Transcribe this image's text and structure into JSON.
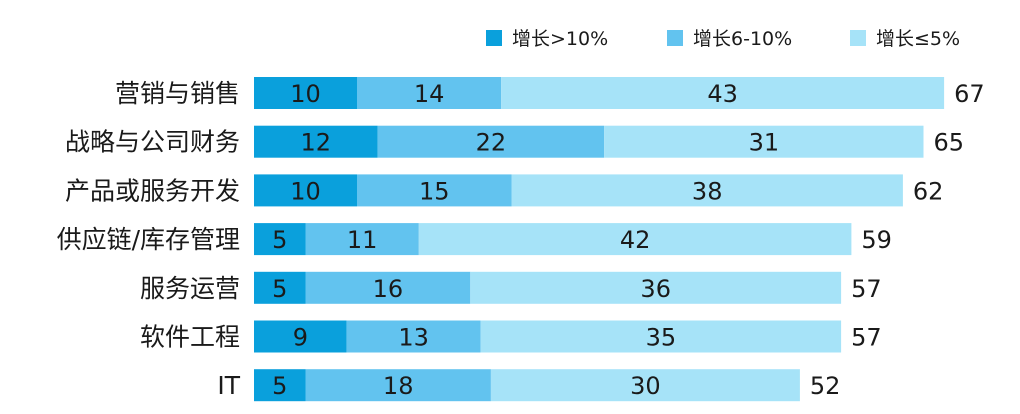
{
  "chart_data": {
    "type": "bar",
    "orientation": "horizontal",
    "stacked": true,
    "categories": [
      "营销与销售",
      "战略与公司财务",
      "产品或服务开发",
      "供应链/库存管理",
      "服务运营",
      "软件工程",
      "IT"
    ],
    "series": [
      {
        "name": "增长>10%",
        "color": "#0aa0dc",
        "values": [
          10,
          12,
          10,
          5,
          5,
          9,
          5
        ]
      },
      {
        "name": "增长6-10%",
        "color": "#62c3ef",
        "values": [
          14,
          22,
          15,
          11,
          16,
          13,
          18
        ]
      },
      {
        "name": "增长≤5%",
        "color": "#a6e3f8",
        "values": [
          43,
          31,
          38,
          42,
          36,
          35,
          30
        ]
      }
    ],
    "totals": [
      67,
      65,
      62,
      59,
      57,
      57,
      52
    ],
    "legend": "top-right",
    "grid": false
  }
}
